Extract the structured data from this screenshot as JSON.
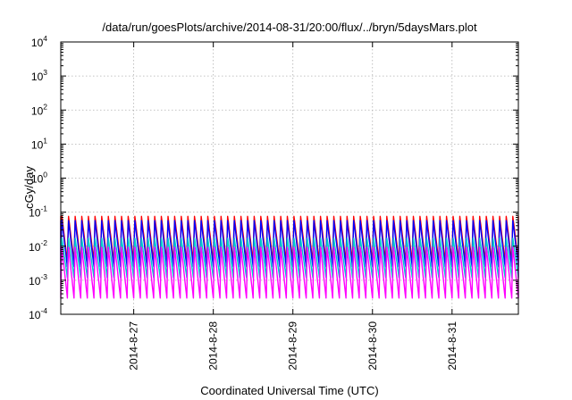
{
  "chart_data": {
    "type": "line",
    "title": "/data/run/goesPlots/archive/2014-08-31/20:00/flux/../bryn/5daysMars.plot",
    "xlabel": "Coordinated Universal Time (UTC)",
    "ylabel": "cGy/day",
    "y_scale": "log",
    "ylim": [
      0.0001,
      10000
    ],
    "y_ticks": [
      {
        "base": "10",
        "exp": "-4"
      },
      {
        "base": "10",
        "exp": "-3"
      },
      {
        "base": "10",
        "exp": "-2"
      },
      {
        "base": "10",
        "exp": "-1"
      },
      {
        "base": "10",
        "exp": "0"
      },
      {
        "base": "10",
        "exp": "1"
      },
      {
        "base": "10",
        "exp": "2"
      },
      {
        "base": "10",
        "exp": "3"
      },
      {
        "base": "10",
        "exp": "4"
      }
    ],
    "xlim": [
      "2014-08-26T02:00",
      "2014-08-31T20:00"
    ],
    "x_ticks": [
      "2014-8-27",
      "2014-8-28",
      "2014-8-29",
      "2014-8-30",
      "2014-8-31"
    ],
    "grid": true,
    "oscillation_period_hours": 2,
    "series": [
      {
        "color": "#ff0000",
        "peak": 0.08,
        "trough": 0.0035
      },
      {
        "color": "#0000ff",
        "peak": 0.06,
        "trough": 0.0025
      },
      {
        "color": "#00cccc",
        "peak": 0.018,
        "trough": 0.0012
      },
      {
        "color": "#ff00ff",
        "peak": 0.01,
        "trough": 0.0003
      }
    ]
  }
}
